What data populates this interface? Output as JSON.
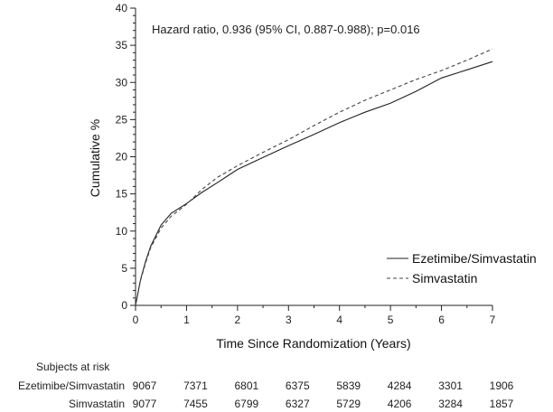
{
  "chart_data": {
    "type": "line",
    "annotation": "Hazard ratio, 0.936 (95% CI, 0.887-0.988); p=0.016",
    "xlabel": "Time Since Randomization (Years)",
    "ylabel": "Cumulative %",
    "xlim": [
      0,
      7
    ],
    "ylim": [
      0,
      40
    ],
    "x_ticks": [
      0,
      1,
      2,
      3,
      4,
      5,
      6,
      7
    ],
    "y_ticks": [
      0,
      5,
      10,
      15,
      20,
      25,
      30,
      35,
      40
    ],
    "grid": false,
    "legend_position": "bottom-right",
    "series": [
      {
        "name": "Ezetimibe/Simvastatin",
        "style": "solid",
        "color": "#222222",
        "x": [
          0,
          0.1,
          0.2,
          0.3,
          0.5,
          0.7,
          1.0,
          1.3,
          1.6,
          2.0,
          2.5,
          3.0,
          3.5,
          4.0,
          4.5,
          5.0,
          5.5,
          6.0,
          6.5,
          7.0
        ],
        "y": [
          0,
          3.5,
          6.0,
          8.0,
          10.8,
          12.4,
          13.7,
          15.2,
          16.5,
          18.3,
          19.9,
          21.5,
          23.0,
          24.6,
          26.0,
          27.2,
          28.8,
          30.6,
          31.7,
          32.8
        ]
      },
      {
        "name": "Simvastatin",
        "style": "dashed",
        "color": "#444444",
        "x": [
          0,
          0.1,
          0.2,
          0.3,
          0.5,
          0.7,
          1.0,
          1.3,
          1.6,
          2.0,
          2.5,
          3.0,
          3.5,
          4.0,
          4.5,
          5.0,
          5.5,
          6.0,
          6.5,
          7.0
        ],
        "y": [
          0,
          3.4,
          5.8,
          7.8,
          10.4,
          12.0,
          13.6,
          15.6,
          17.2,
          18.8,
          20.6,
          22.3,
          24.2,
          26.0,
          27.6,
          29.0,
          30.4,
          31.6,
          33.0,
          34.5
        ]
      }
    ],
    "risk_table": {
      "title": "Subjects at risk",
      "rows": [
        {
          "label": "Ezetimibe/Simvastatin",
          "values": [
            "9067",
            "7371",
            "6801",
            "6375",
            "5839",
            "4284",
            "3301",
            "1906"
          ]
        },
        {
          "label": "Simvastatin",
          "values": [
            "9077",
            "7455",
            "6799",
            "6327",
            "5729",
            "4206",
            "3284",
            "1857"
          ]
        }
      ]
    }
  }
}
